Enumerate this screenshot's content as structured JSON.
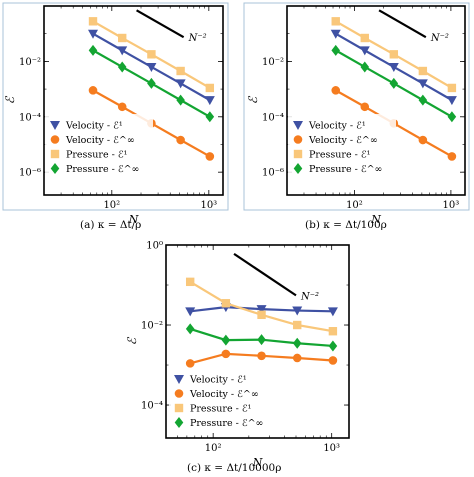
{
  "colors": {
    "velocity_e1": "#3f51a3",
    "velocity_einf": "#f57c1f",
    "pressure_e1": "#f9c77a",
    "pressure_einf": "#13a532",
    "panel_border": "#a9c3d8"
  },
  "captions": [
    "(a) κ = Δt/ρ",
    "(b) κ = Δt/100ρ",
    "(c) κ = Δt/10000ρ"
  ],
  "chart_data": [
    {
      "type": "line",
      "xscale": "log",
      "yscale": "log",
      "xlabel": "N",
      "ylabel": "ℰ",
      "xlim": [
        20,
        1400
      ],
      "ylim": [
        1.5e-07,
        1
      ],
      "xticks": [
        {
          "v": 100,
          "label": "10²"
        },
        {
          "v": 1000,
          "label": "10³"
        }
      ],
      "yticks": [
        {
          "v": 0.01,
          "label": "10⁻²"
        },
        {
          "v": 0.0001,
          "label": "10⁻⁴"
        },
        {
          "v": 1e-06,
          "label": "10⁻⁶"
        }
      ],
      "x": [
        64,
        128,
        256,
        512,
        1024
      ],
      "series": [
        {
          "name": "Velocity - ℰ¹",
          "marker": "triangle",
          "color_key": "velocity_e1",
          "values": [
            0.1,
            0.025,
            0.0063,
            0.0016,
            0.0004
          ]
        },
        {
          "name": "Velocity - ℰ^∞",
          "marker": "circle",
          "color_key": "velocity_einf",
          "values": [
            0.0009,
            0.00023,
            5.8e-05,
            1.45e-05,
            3.7e-06
          ]
        },
        {
          "name": "Pressure - ℰ¹",
          "marker": "square",
          "color_key": "pressure_e1",
          "values": [
            0.28,
            0.07,
            0.018,
            0.0045,
            0.0011
          ]
        },
        {
          "name": "Pressure - ℰ^∞",
          "marker": "diamond",
          "color_key": "pressure_einf",
          "values": [
            0.025,
            0.0063,
            0.0016,
            0.0004,
            0.0001
          ]
        }
      ],
      "reference_line": {
        "label": "N⁻²",
        "x": [
          180,
          550
        ],
        "y": [
          0.7,
          0.075
        ]
      },
      "legend": "bottom-left"
    },
    {
      "type": "line",
      "xscale": "log",
      "yscale": "log",
      "xlabel": "N",
      "ylabel": "ℰ",
      "xlim": [
        20,
        1400
      ],
      "ylim": [
        1.5e-07,
        1
      ],
      "xticks": [
        {
          "v": 100,
          "label": "10²"
        },
        {
          "v": 1000,
          "label": "10³"
        }
      ],
      "yticks": [
        {
          "v": 0.01,
          "label": "10⁻²"
        },
        {
          "v": 0.0001,
          "label": "10⁻⁴"
        },
        {
          "v": 1e-06,
          "label": "10⁻⁶"
        }
      ],
      "x": [
        64,
        128,
        256,
        512,
        1024
      ],
      "series": [
        {
          "name": "Velocity - ℰ¹",
          "marker": "triangle",
          "color_key": "velocity_e1",
          "values": [
            0.1,
            0.025,
            0.0063,
            0.0016,
            0.0004
          ]
        },
        {
          "name": "Velocity - ℰ^∞",
          "marker": "circle",
          "color_key": "velocity_einf",
          "values": [
            0.0009,
            0.00023,
            5.8e-05,
            1.45e-05,
            3.7e-06
          ]
        },
        {
          "name": "Pressure - ℰ¹",
          "marker": "square",
          "color_key": "pressure_e1",
          "values": [
            0.28,
            0.07,
            0.018,
            0.0045,
            0.0011
          ]
        },
        {
          "name": "Pressure - ℰ^∞",
          "marker": "diamond",
          "color_key": "pressure_einf",
          "values": [
            0.025,
            0.0063,
            0.0016,
            0.0004,
            0.0001
          ]
        }
      ],
      "reference_line": {
        "label": "N⁻²",
        "x": [
          180,
          550
        ],
        "y": [
          0.7,
          0.075
        ]
      },
      "legend": "bottom-left"
    },
    {
      "type": "line",
      "xscale": "log",
      "yscale": "log",
      "xlabel": "N",
      "ylabel": "ℰ",
      "xlim": [
        40,
        1400
      ],
      "ylim": [
        1.5e-05,
        1
      ],
      "xticks": [
        {
          "v": 100,
          "label": "10²"
        },
        {
          "v": 1000,
          "label": "10³"
        }
      ],
      "yticks": [
        {
          "v": 1,
          "label": "10⁰"
        },
        {
          "v": 0.01,
          "label": "10⁻²"
        },
        {
          "v": 0.0001,
          "label": "10⁻⁴"
        }
      ],
      "x": [
        64,
        128,
        256,
        512,
        1024
      ],
      "series": [
        {
          "name": "Velocity - ℰ¹",
          "marker": "triangle",
          "color_key": "velocity_e1",
          "values": [
            0.022,
            0.028,
            0.025,
            0.023,
            0.022
          ]
        },
        {
          "name": "Velocity - ℰ^∞",
          "marker": "circle",
          "color_key": "velocity_einf",
          "values": [
            0.0011,
            0.0019,
            0.0017,
            0.0015,
            0.0013
          ]
        },
        {
          "name": "Pressure - ℰ¹",
          "marker": "square",
          "color_key": "pressure_e1",
          "values": [
            0.12,
            0.035,
            0.018,
            0.01,
            0.007
          ]
        },
        {
          "name": "Pressure - ℰ^∞",
          "marker": "diamond",
          "color_key": "pressure_einf",
          "values": [
            0.008,
            0.0042,
            0.0043,
            0.0035,
            0.003
          ]
        }
      ],
      "reference_line": {
        "label": "N⁻²",
        "x": [
          150,
          500
        ],
        "y": [
          0.6,
          0.055
        ]
      },
      "legend": "bottom-left"
    }
  ]
}
